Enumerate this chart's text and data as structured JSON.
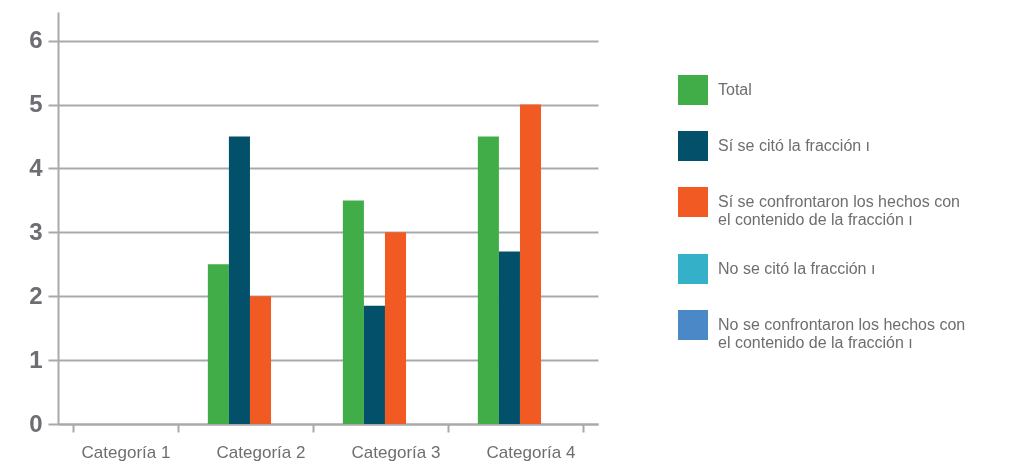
{
  "chart_data": {
    "type": "bar",
    "categories": [
      "Categoría  1",
      "Categoría 2",
      "Categoría 3",
      "Categoría 4"
    ],
    "series": [
      {
        "name": "Total",
        "color": "#41ad49",
        "values": [
          null,
          2.5,
          3.5,
          4.5
        ]
      },
      {
        "name": "Sí se citó la fracción ı",
        "color": "#03506b",
        "values": [
          null,
          4.5,
          1.85,
          2.7
        ]
      },
      {
        "name": "Sí se confrontaron los hechos con el contenido de la fracción ı",
        "color": "#f15a22",
        "values": [
          null,
          2.0,
          3.0,
          5.0
        ]
      },
      {
        "name": "No se citó la fracción ı",
        "color": "#35b0c9",
        "values": [
          null,
          null,
          null,
          null
        ]
      },
      {
        "name": "No se confrontaron los hechos con el contenido de la fracción ı",
        "color": "#4a88c8",
        "values": [
          null,
          null,
          null,
          null
        ]
      }
    ],
    "ylim": [
      0,
      6.45
    ],
    "yticks": [
      0,
      1,
      2,
      3,
      4,
      5,
      6
    ],
    "grid": "y",
    "legend": "right"
  }
}
